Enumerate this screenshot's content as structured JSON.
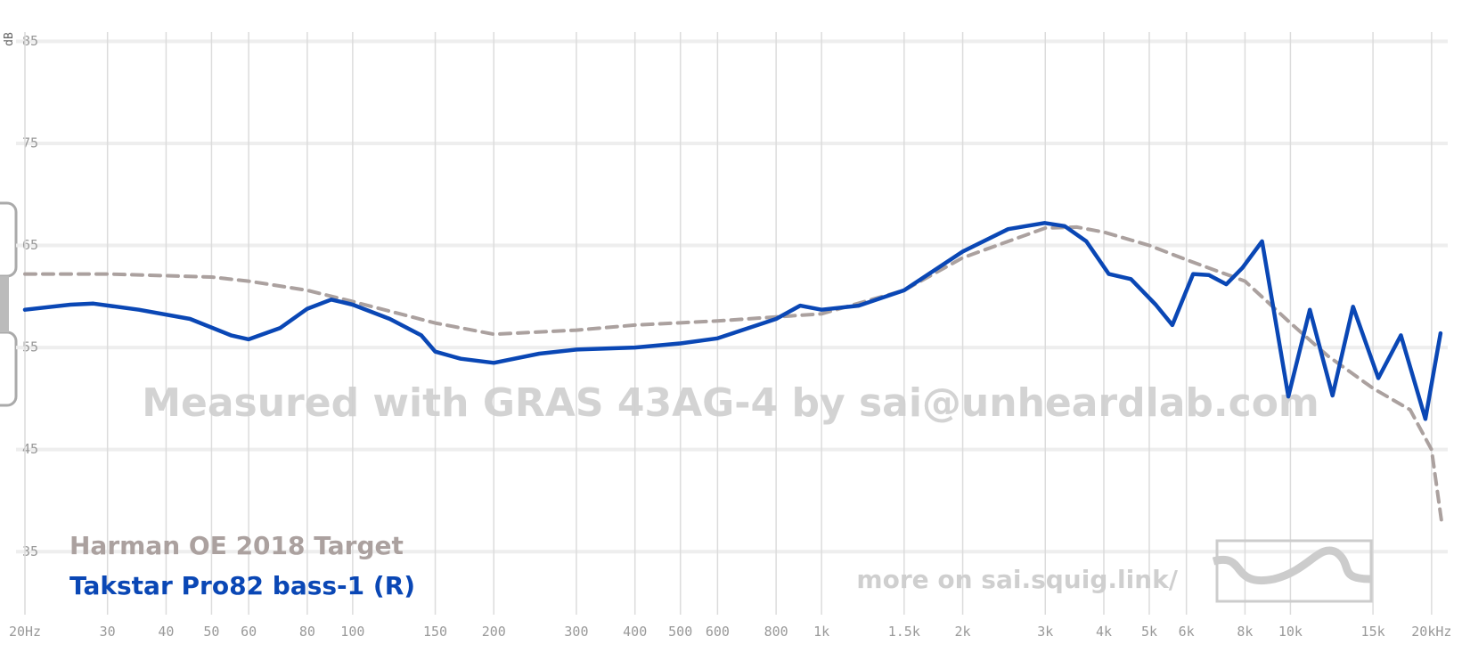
{
  "chart_data": {
    "type": "line",
    "y_label": "dB",
    "watermark": "Measured with GRAS 43AG-4 by sai@unheardlab.com",
    "footer_link": "more on sai.squig.link/",
    "xscale": "log",
    "xlim": [
      20,
      21000
    ],
    "ylim": [
      29,
      88
    ],
    "xticks": [
      {
        "value": 20,
        "label": "20Hz"
      },
      30,
      40,
      50,
      60,
      80,
      100,
      150,
      200,
      300,
      400,
      500,
      600,
      800,
      {
        "value": 1000,
        "label": "1k"
      },
      {
        "value": 1500,
        "label": "1.5k"
      },
      {
        "value": 2000,
        "label": "2k"
      },
      {
        "value": 3000,
        "label": "3k"
      },
      {
        "value": 4000,
        "label": "4k"
      },
      {
        "value": 5000,
        "label": "5k"
      },
      {
        "value": 6000,
        "label": "6k"
      },
      {
        "value": 8000,
        "label": "8k"
      },
      {
        "value": 10000,
        "label": "10k"
      },
      {
        "value": 15000,
        "label": "15k"
      },
      {
        "value": 20000,
        "label": "20kHz"
      }
    ],
    "yticks": [
      85,
      75,
      65,
      55,
      45,
      35
    ],
    "grid": true,
    "series": [
      {
        "name": "Harman OE 2018 Target",
        "color": "#aba19f",
        "dashed": true,
        "x": [
          20,
          30,
          50,
          60,
          80,
          100,
          150,
          200,
          300,
          400,
          600,
          800,
          1000,
          1500,
          2000,
          3000,
          3500,
          4000,
          5000,
          6000,
          8000,
          10000,
          12000,
          15000,
          18000,
          20000,
          21000
        ],
        "values": [
          62.2,
          62.2,
          61.9,
          61.5,
          60.6,
          59.5,
          57.4,
          56.3,
          56.7,
          57.2,
          57.6,
          58.0,
          58.3,
          60.6,
          63.8,
          66.7,
          66.8,
          66.3,
          65.0,
          63.6,
          61.5,
          57.4,
          54.2,
          51.0,
          48.9,
          45.0,
          38.0
        ]
      },
      {
        "name": "Takstar Pro82 bass-1 (R)",
        "color": "#0a47b5",
        "dashed": false,
        "x": [
          20,
          25,
          28,
          35,
          45,
          55,
          60,
          70,
          80,
          90,
          100,
          120,
          140,
          150,
          170,
          200,
          250,
          300,
          400,
          500,
          600,
          800,
          900,
          1000,
          1200,
          1500,
          2000,
          2500,
          2990,
          3300,
          3670,
          4100,
          4570,
          5160,
          5600,
          6200,
          6700,
          7300,
          7900,
          8700,
          9900,
          11000,
          12300,
          13600,
          15400,
          17200,
          19400,
          20900
        ],
        "values": [
          58.7,
          59.2,
          59.3,
          58.7,
          57.8,
          56.2,
          55.8,
          56.9,
          58.8,
          59.7,
          59.2,
          57.8,
          56.2,
          54.6,
          53.9,
          53.5,
          54.4,
          54.8,
          55.0,
          55.4,
          55.9,
          57.8,
          59.1,
          58.7,
          59.1,
          60.6,
          64.4,
          66.6,
          67.2,
          66.9,
          65.4,
          62.2,
          61.7,
          59.2,
          57.2,
          62.2,
          62.1,
          61.2,
          62.8,
          65.4,
          50.2,
          58.7,
          50.3,
          59.0,
          52.0,
          56.2,
          48.0,
          56.4
        ]
      }
    ]
  }
}
